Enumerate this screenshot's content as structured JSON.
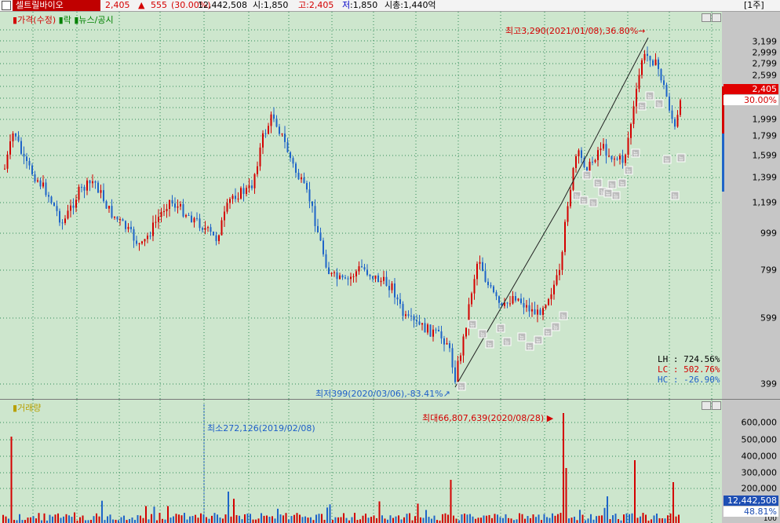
{
  "header": {
    "stock_name": "셀트릴바이오",
    "price": "2,405",
    "arrow": "▲",
    "change": "555",
    "change_pct": "(30.00%)",
    "volume": "12,442,508",
    "open": "시:1,850",
    "high": "고:2,405",
    "low_prefix": "저",
    "low": ":1,850",
    "mcap": "시총:1,440억",
    "period": "[1주]"
  },
  "price_panel": {
    "legend_price": "가격(수정)",
    "legend_rak": "락",
    "legend_news": "뉴스/공시",
    "y_labels": [
      "3,199",
      "2,999",
      "2,799",
      "2,599",
      "1,999",
      "1,799",
      "1,599",
      "1,399",
      "1,199",
      "999",
      "799",
      "599",
      "399"
    ],
    "current_price": "2,405",
    "current_pct": "30.00%",
    "high_annotation": "최고3,290(2021/01/08),36.80%",
    "low_annotation": "최저399(2020/03/06),-83.41%",
    "stats": {
      "lh": "LH : 724.56%",
      "lc": "LC : 502.76%",
      "hc": "HC : -26.90%"
    },
    "news_marker": "뉴",
    "colors": {
      "up": "#d40000",
      "down": "#1e64c8",
      "bg": "#cde6cd",
      "grid": "#2e8b57"
    }
  },
  "volume_panel": {
    "legend": "거래량",
    "y_labels": [
      "600,000",
      "500,000",
      "400,000",
      "300,000",
      "200,000",
      "100"
    ],
    "current_volume": "12,442,508",
    "current_pct": "48.81%",
    "max_annotation": "최대66,807,639(2020/08/28)",
    "min_annotation": "최소272,126(2019/02/08)",
    "max_arrow": "▶"
  }
}
